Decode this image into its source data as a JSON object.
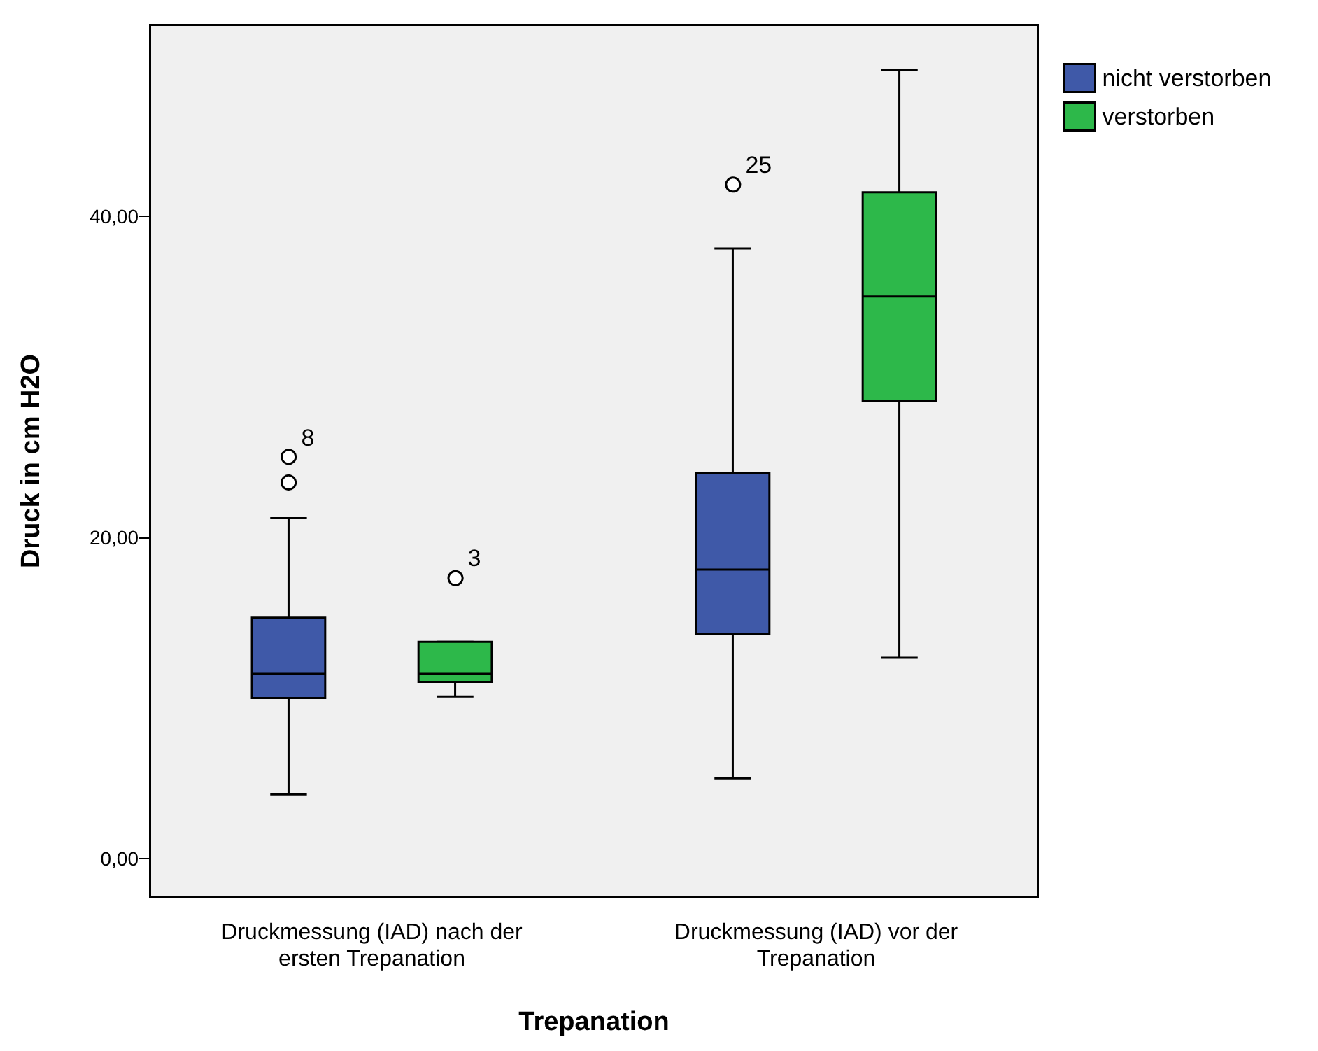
{
  "chart_data": {
    "type": "box",
    "xlabel": "Trepanation",
    "ylabel": "Druck in cm H2O",
    "categories": [
      "Druckmessung (IAD) nach der\nersten Trepanation",
      "Druckmessung (IAD) vor der\nTrepanation"
    ],
    "series": [
      {
        "name": "nicht verstorben",
        "color": "#3f59a8",
        "boxes": [
          {
            "low": 4.0,
            "q1": 10.0,
            "median": 11.5,
            "q3": 15.0,
            "high": 21.2,
            "outliers": [
              23.5,
              25.1
            ]
          },
          {
            "low": 5.0,
            "q1": 14.0,
            "median": 18.0,
            "q3": 24.0,
            "high": 38.0,
            "outliers": [
              42.1
            ]
          }
        ]
      },
      {
        "name": "verstorben",
        "color": "#2db84a",
        "boxes": [
          {
            "low": 10.1,
            "q1": 11.0,
            "median": 11.5,
            "q3": 13.5,
            "high": 13.5,
            "outliers": [
              17.6
            ]
          },
          {
            "low": 12.5,
            "q1": 28.5,
            "median": 35.0,
            "q3": 41.5,
            "high": 49.1
          }
        ]
      }
    ],
    "ylim": [
      -2.4,
      51.9
    ],
    "yticks": [
      {
        "value": 0,
        "label": "0,00"
      },
      {
        "value": 20,
        "label": "20,00"
      },
      {
        "value": 40,
        "label": "40,00"
      }
    ],
    "annotations": [
      "8",
      "3",
      "25"
    ],
    "grid": false,
    "legend": "top right"
  }
}
